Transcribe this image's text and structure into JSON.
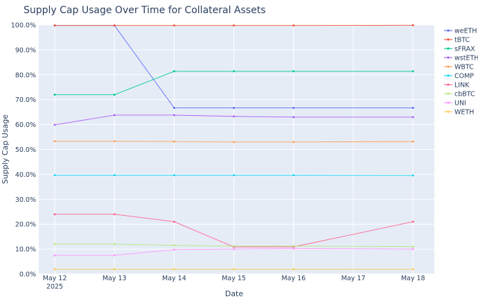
{
  "chart_data": {
    "type": "line",
    "title": "Supply Cap Usage Over Time for Collateral Assets",
    "xlabel": "Date",
    "ylabel": "Supply Cap Usage",
    "x_ticks": [
      "May 12",
      "May 13",
      "May 14",
      "May 15",
      "May 16",
      "May 17",
      "May 18"
    ],
    "x_tick_sub": "2025",
    "y_ticks": [
      "0.0%",
      "10.0%",
      "20.0%",
      "30.0%",
      "40.0%",
      "50.0%",
      "60.0%",
      "70.0%",
      "80.0%",
      "90.0%",
      "100.0%"
    ],
    "ylim": [
      0,
      100
    ],
    "grid": true,
    "legend_position": "right",
    "series": [
      {
        "name": "weETH",
        "color": "#636efa",
        "x": [
          "2025-05-12",
          "2025-05-13",
          "2025-05-14",
          "2025-05-15",
          "2025-05-16",
          "2025-05-18"
        ],
        "values": [
          99.8,
          99.8,
          66.7,
          66.7,
          66.7,
          66.7
        ]
      },
      {
        "name": "tBTC",
        "color": "#ef553b",
        "x": [
          "2025-05-12",
          "2025-05-13",
          "2025-05-14",
          "2025-05-15",
          "2025-05-16",
          "2025-05-18"
        ],
        "values": [
          99.8,
          99.8,
          99.8,
          99.8,
          99.8,
          99.9
        ]
      },
      {
        "name": "sFRAX",
        "color": "#00cc96",
        "x": [
          "2025-05-12",
          "2025-05-13",
          "2025-05-14",
          "2025-05-15",
          "2025-05-16",
          "2025-05-18"
        ],
        "values": [
          72.0,
          72.0,
          81.4,
          81.4,
          81.4,
          81.4
        ]
      },
      {
        "name": "wstETH",
        "color": "#ab63fa",
        "x": [
          "2025-05-12",
          "2025-05-13",
          "2025-05-14",
          "2025-05-15",
          "2025-05-16",
          "2025-05-18"
        ],
        "values": [
          59.9,
          63.8,
          63.8,
          63.3,
          63.0,
          63.0
        ]
      },
      {
        "name": "WBTC",
        "color": "#ffa15a",
        "x": [
          "2025-05-12",
          "2025-05-13",
          "2025-05-14",
          "2025-05-15",
          "2025-05-16",
          "2025-05-18"
        ],
        "values": [
          53.3,
          53.3,
          53.2,
          53.0,
          53.0,
          53.2
        ]
      },
      {
        "name": "COMP",
        "color": "#19d3f3",
        "x": [
          "2025-05-12",
          "2025-05-13",
          "2025-05-14",
          "2025-05-15",
          "2025-05-16",
          "2025-05-18"
        ],
        "values": [
          39.7,
          39.7,
          39.7,
          39.7,
          39.7,
          39.6
        ]
      },
      {
        "name": "LINK",
        "color": "#ff6692",
        "x": [
          "2025-05-12",
          "2025-05-13",
          "2025-05-14",
          "2025-05-15",
          "2025-05-16",
          "2025-05-18"
        ],
        "values": [
          24.0,
          24.0,
          21.0,
          10.9,
          10.9,
          21.0
        ]
      },
      {
        "name": "cbBTC",
        "color": "#b6e880",
        "x": [
          "2025-05-12",
          "2025-05-13",
          "2025-05-14",
          "2025-05-15",
          "2025-05-16",
          "2025-05-18"
        ],
        "values": [
          12.0,
          12.0,
          11.5,
          11.2,
          11.2,
          11.0
        ]
      },
      {
        "name": "UNI",
        "color": "#ff97ff",
        "x": [
          "2025-05-12",
          "2025-05-13",
          "2025-05-14",
          "2025-05-15",
          "2025-05-16",
          "2025-05-18"
        ],
        "values": [
          7.5,
          7.5,
          9.8,
          10.0,
          10.2,
          10.0
        ]
      },
      {
        "name": "WETH",
        "color": "#fecb52",
        "x": [
          "2025-05-12",
          "2025-05-13",
          "2025-05-14",
          "2025-05-15",
          "2025-05-16",
          "2025-05-18"
        ],
        "values": [
          1.9,
          1.9,
          1.9,
          1.9,
          1.9,
          1.9
        ]
      }
    ]
  }
}
